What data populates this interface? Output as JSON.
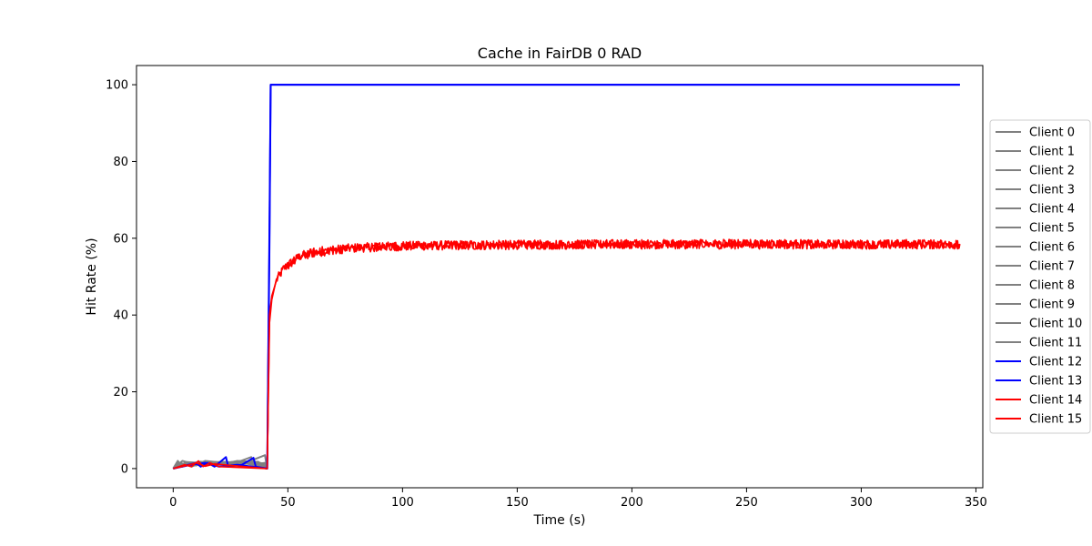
{
  "chart_data": {
    "type": "line",
    "title": "Cache in  FairDB 0 RAD",
    "xlabel": "Time (s)",
    "ylabel": "Hit Rate (%)",
    "xlim": [
      -16,
      353
    ],
    "ylim": [
      -5,
      105
    ],
    "xticks": [
      0,
      50,
      100,
      150,
      200,
      250,
      300,
      350
    ],
    "yticks": [
      0,
      20,
      40,
      60,
      80,
      100
    ],
    "grid": false,
    "legend_position": "right",
    "colors": {
      "gray": "#808080",
      "blue": "#0000ff",
      "red": "#ff0000"
    },
    "series": [
      {
        "name": "Client 0",
        "color": "#808080",
        "points": [
          [
            0,
            0
          ],
          [
            2,
            2
          ],
          [
            4,
            0.5
          ],
          [
            6,
            1.5
          ],
          [
            10,
            0.8
          ],
          [
            15,
            1.8
          ],
          [
            20,
            1.2
          ],
          [
            25,
            1.5
          ],
          [
            30,
            1.8
          ],
          [
            35,
            1
          ],
          [
            40,
            1.5
          ],
          [
            41,
            0
          ]
        ]
      },
      {
        "name": "Client 1",
        "color": "#808080",
        "points": [
          [
            0,
            0
          ],
          [
            3,
            1.5
          ],
          [
            8,
            0.5
          ],
          [
            14,
            2
          ],
          [
            22,
            1.5
          ],
          [
            30,
            2
          ],
          [
            38,
            1.5
          ],
          [
            41,
            0
          ]
        ]
      },
      {
        "name": "Client 2",
        "color": "#808080",
        "points": [
          [
            0,
            0
          ],
          [
            5,
            1
          ],
          [
            12,
            1.8
          ],
          [
            20,
            1
          ],
          [
            28,
            2
          ],
          [
            36,
            1.5
          ],
          [
            41,
            0
          ]
        ]
      },
      {
        "name": "Client 3",
        "color": "#808080",
        "points": [
          [
            0,
            0
          ],
          [
            4,
            2
          ],
          [
            10,
            1
          ],
          [
            18,
            1.5
          ],
          [
            26,
            1.2
          ],
          [
            34,
            3
          ],
          [
            35,
            1.5
          ],
          [
            41,
            0
          ]
        ]
      },
      {
        "name": "Client 4",
        "color": "#808080",
        "points": [
          [
            0,
            0
          ],
          [
            6,
            1.2
          ],
          [
            14,
            1.8
          ],
          [
            24,
            1.4
          ],
          [
            32,
            1.6
          ],
          [
            40,
            3.5
          ],
          [
            41,
            0
          ]
        ]
      },
      {
        "name": "Client 5",
        "color": "#808080",
        "points": [
          [
            0,
            0
          ],
          [
            2,
            1.5
          ],
          [
            9,
            0.8
          ],
          [
            17,
            1.6
          ],
          [
            27,
            1.3
          ],
          [
            37,
            1.8
          ],
          [
            41,
            0
          ]
        ]
      },
      {
        "name": "Client 6",
        "color": "#808080",
        "points": [
          [
            0,
            0
          ],
          [
            3,
            0.8
          ],
          [
            11,
            1.5
          ],
          [
            19,
            1.7
          ],
          [
            29,
            1.2
          ],
          [
            39,
            1.4
          ],
          [
            41,
            0
          ]
        ]
      },
      {
        "name": "Client 7",
        "color": "#808080",
        "points": [
          [
            0,
            0
          ],
          [
            7,
            1.6
          ],
          [
            13,
            1.1
          ],
          [
            21,
            1.8
          ],
          [
            31,
            1.4
          ],
          [
            38,
            1.2
          ],
          [
            41,
            0
          ]
        ]
      },
      {
        "name": "Client 8",
        "color": "#808080",
        "points": [
          [
            0,
            0
          ],
          [
            5,
            1.4
          ],
          [
            15,
            1.2
          ],
          [
            23,
            1.6
          ],
          [
            33,
            1.5
          ],
          [
            41,
            0
          ]
        ]
      },
      {
        "name": "Client 9",
        "color": "#808080",
        "points": [
          [
            0,
            0
          ],
          [
            8,
            1.3
          ],
          [
            16,
            1.7
          ],
          [
            25,
            1.1
          ],
          [
            35,
            1.6
          ],
          [
            41,
            0
          ]
        ]
      },
      {
        "name": "Client 10",
        "color": "#808080",
        "points": [
          [
            0,
            0
          ],
          [
            4,
            1.1
          ],
          [
            12,
            1.4
          ],
          [
            22,
            1.7
          ],
          [
            32,
            1.3
          ],
          [
            41,
            0
          ]
        ]
      },
      {
        "name": "Client 11",
        "color": "#808080",
        "points": [
          [
            0,
            0
          ],
          [
            6,
            1.7
          ],
          [
            16,
            1.3
          ],
          [
            26,
            1.6
          ],
          [
            36,
            1.2
          ],
          [
            41,
            0
          ]
        ]
      },
      {
        "name": "Client 12",
        "color": "#0000ff",
        "points": [
          [
            0,
            0
          ],
          [
            10,
            1.5
          ],
          [
            12,
            0.5
          ],
          [
            15,
            1.5
          ],
          [
            18,
            0.5
          ],
          [
            23,
            3
          ],
          [
            24,
            0.5
          ],
          [
            30,
            1
          ],
          [
            35,
            2.8
          ],
          [
            36,
            0.5
          ],
          [
            41,
            0
          ],
          [
            42,
            60
          ],
          [
            42.5,
            100
          ],
          [
            343,
            100
          ]
        ]
      },
      {
        "name": "Client 13",
        "color": "#0000ff",
        "points": [
          [
            0,
            0
          ],
          [
            8,
            1
          ],
          [
            14,
            1.5
          ],
          [
            20,
            0.5
          ],
          [
            28,
            1
          ],
          [
            41,
            0
          ],
          [
            42,
            65
          ],
          [
            42.5,
            100
          ],
          [
            343,
            100
          ]
        ]
      },
      {
        "name": "Client 14",
        "color": "#ff0000",
        "points": [
          [
            0,
            0
          ],
          [
            5,
            1
          ],
          [
            8,
            0.5
          ],
          [
            11,
            2
          ],
          [
            13,
            0.5
          ],
          [
            16,
            1.5
          ],
          [
            20,
            0.5
          ],
          [
            41,
            0
          ],
          [
            42,
            38
          ],
          [
            43,
            44
          ],
          [
            45,
            49
          ],
          [
            48,
            52
          ],
          [
            52,
            54
          ],
          [
            56,
            55.5
          ],
          [
            60,
            56
          ],
          [
            70,
            57
          ],
          [
            80,
            57.5
          ],
          [
            100,
            58
          ],
          [
            150,
            58.3
          ],
          [
            200,
            58.5
          ],
          [
            250,
            58.5
          ],
          [
            300,
            58.5
          ],
          [
            343,
            58.5
          ]
        ]
      },
      {
        "name": "Client 15",
        "color": "#ff0000",
        "points": [
          [
            0,
            0
          ],
          [
            6,
            0.8
          ],
          [
            10,
            1.5
          ],
          [
            14,
            0.6
          ],
          [
            18,
            1.2
          ],
          [
            41,
            0
          ],
          [
            42,
            40
          ],
          [
            43,
            45
          ],
          [
            46,
            50
          ],
          [
            50,
            53
          ],
          [
            55,
            55
          ],
          [
            62,
            56.5
          ],
          [
            75,
            57.3
          ],
          [
            90,
            57.8
          ],
          [
            120,
            58.2
          ],
          [
            200,
            58.4
          ],
          [
            343,
            58.4
          ]
        ]
      }
    ]
  }
}
